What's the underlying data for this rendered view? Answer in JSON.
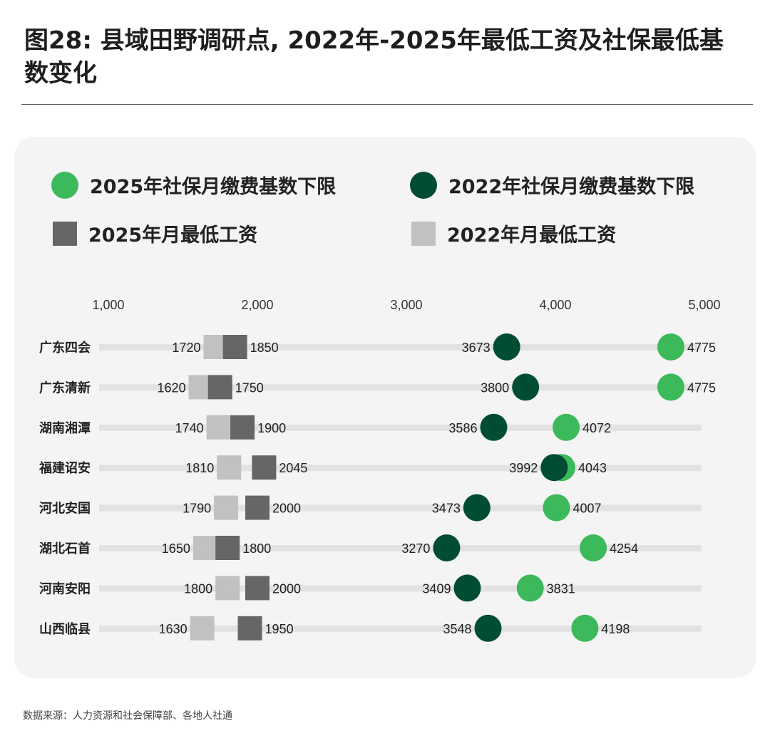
{
  "title": "图28: 县域田野调研点, 2022年-2025年最低工资及社保最低基数变化",
  "source": "数据来源：人力资源和社会保障部、各地人社通",
  "colors": {
    "ss2025": "#3cb95a",
    "ss2022": "#004d33",
    "wage2025": "#666666",
    "wage2022": "#bfc1c2",
    "track": "#e2e2e2",
    "card": "#f4f4f4"
  },
  "chart_data": {
    "type": "dot-plot",
    "xlim": [
      1000,
      5000
    ],
    "xticks": [
      1000,
      2000,
      3000,
      4000,
      5000
    ],
    "xtick_labels": [
      "1,000",
      "2,000",
      "3,000",
      "4,000",
      "5,000"
    ],
    "legend": [
      {
        "name": "2025年社保月缴费基数下限",
        "marker": "circle",
        "color": "#3cb95a"
      },
      {
        "name": "2022年社保月缴费基数下限",
        "marker": "circle",
        "color": "#004d33"
      },
      {
        "name": "2025年月最低工资",
        "marker": "square",
        "color": "#666666"
      },
      {
        "name": "2022年月最低工资",
        "marker": "square",
        "color": "#bfc1c2"
      }
    ],
    "legend_placement": "top",
    "categories": [
      "广东四会",
      "广东清新",
      "湖南湘潭",
      "福建诏安",
      "河北安国",
      "湖北石首",
      "河南安阳",
      "山西临县"
    ],
    "series": [
      {
        "name": "2022年月最低工资",
        "values": [
          1720,
          1620,
          1740,
          1810,
          1790,
          1650,
          1800,
          1630
        ]
      },
      {
        "name": "2025年月最低工资",
        "values": [
          1850,
          1750,
          1900,
          2045,
          2000,
          1800,
          2000,
          1950
        ]
      },
      {
        "name": "2022年社保月缴费基数下限",
        "values": [
          3673,
          3800,
          3586,
          3992,
          3473,
          3270,
          3409,
          3548
        ]
      },
      {
        "name": "2025年社保月缴费基数下限",
        "values": [
          4775,
          4775,
          4072,
          4043,
          4007,
          4254,
          3831,
          4198
        ]
      }
    ]
  }
}
